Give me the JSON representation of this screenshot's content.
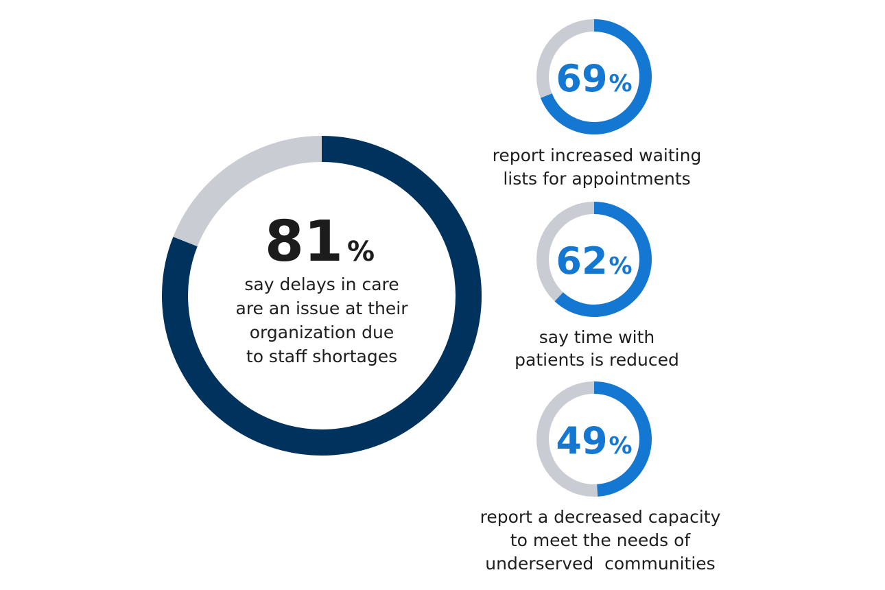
{
  "colors": {
    "main_ring": "#00325e",
    "accent_ring": "#1478d2",
    "track": "#c9ccd3",
    "big_text": "#1c1c1c",
    "small_text": "#1478d2",
    "caption_text": "#1e1e1e"
  },
  "chart_data": [
    {
      "type": "pie",
      "subtype": "donut",
      "value": 81,
      "value_label": "81",
      "unit": "%",
      "caption": [
        "say delays in care",
        "are an issue at their",
        "organization due",
        "to staff shortages"
      ]
    },
    {
      "type": "pie",
      "subtype": "donut",
      "value": 69,
      "value_label": "69",
      "unit": "%",
      "caption": [
        "report increased waiting",
        "lists for appointments"
      ]
    },
    {
      "type": "pie",
      "subtype": "donut",
      "value": 62,
      "value_label": "62",
      "unit": "%",
      "caption": [
        "say time with",
        "patients is reduced"
      ]
    },
    {
      "type": "pie",
      "subtype": "donut",
      "value": 49,
      "value_label": "49",
      "unit": "%",
      "caption": [
        "report a decreased capacity",
        "to meet the needs of",
        "underserved  communities"
      ]
    }
  ]
}
